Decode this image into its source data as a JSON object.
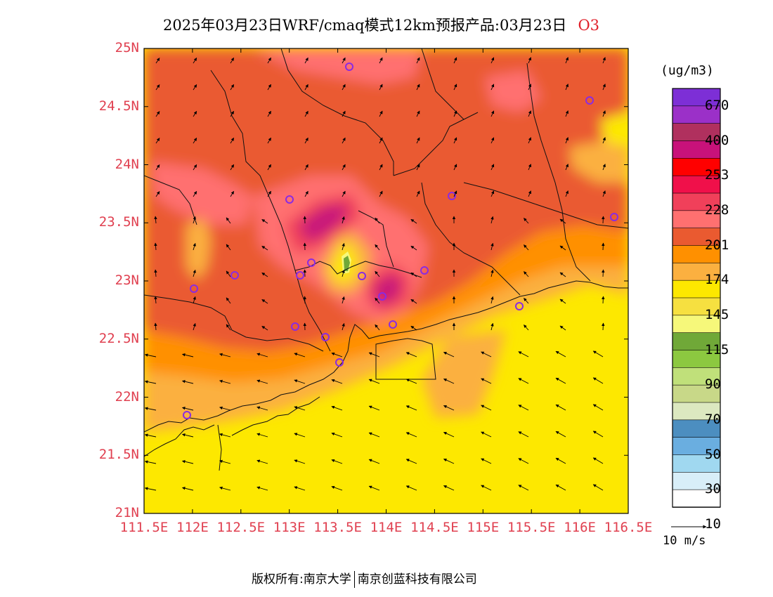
{
  "title": {
    "main": "2025年03月23日WRF/cmaq模式12km预报产品:03月23日",
    "species": "O3"
  },
  "map": {
    "lon_ticks": [
      "111.5E",
      "112E",
      "112.5E",
      "113E",
      "113.5E",
      "114E",
      "114.5E",
      "115E",
      "115.5E",
      "116E",
      "116.5E"
    ],
    "lat_ticks": [
      "25N",
      "24.5N",
      "24N",
      "23.5N",
      "23N",
      "22.5N",
      "22N",
      "21.5N",
      "21N"
    ],
    "lon_range": [
      111.5,
      116.5
    ],
    "lat_range": [
      21,
      25
    ]
  },
  "legend": {
    "units": "(ug/m3)",
    "labels": [
      "670",
      "400",
      "253",
      "228",
      "201",
      "174",
      "145",
      "115",
      "90",
      "70",
      "50",
      "30",
      "10"
    ],
    "colors": [
      "#7d2fd6",
      "#9b30c8",
      "#b0305e",
      "#c8127a",
      "#ff0000",
      "#f0104a",
      "#f0405a",
      "#ff7070",
      "#ea5a30",
      "#ff9000",
      "#fbb040",
      "#fde800",
      "#f6e040",
      "#f6f87a",
      "#70a838",
      "#8cc840",
      "#c0e07a",
      "#c8d888",
      "#dce8c0",
      "#4c8ec0",
      "#6aaee0",
      "#a0d8f0",
      "#d8eef8",
      "#ffffff"
    ]
  },
  "wind": {
    "scale_label": "10 m/s"
  },
  "stations": {
    "count": 18
  },
  "footer": {
    "left": "版权所有:南京大学",
    "right": "南京创蓝科技有限公司"
  }
}
